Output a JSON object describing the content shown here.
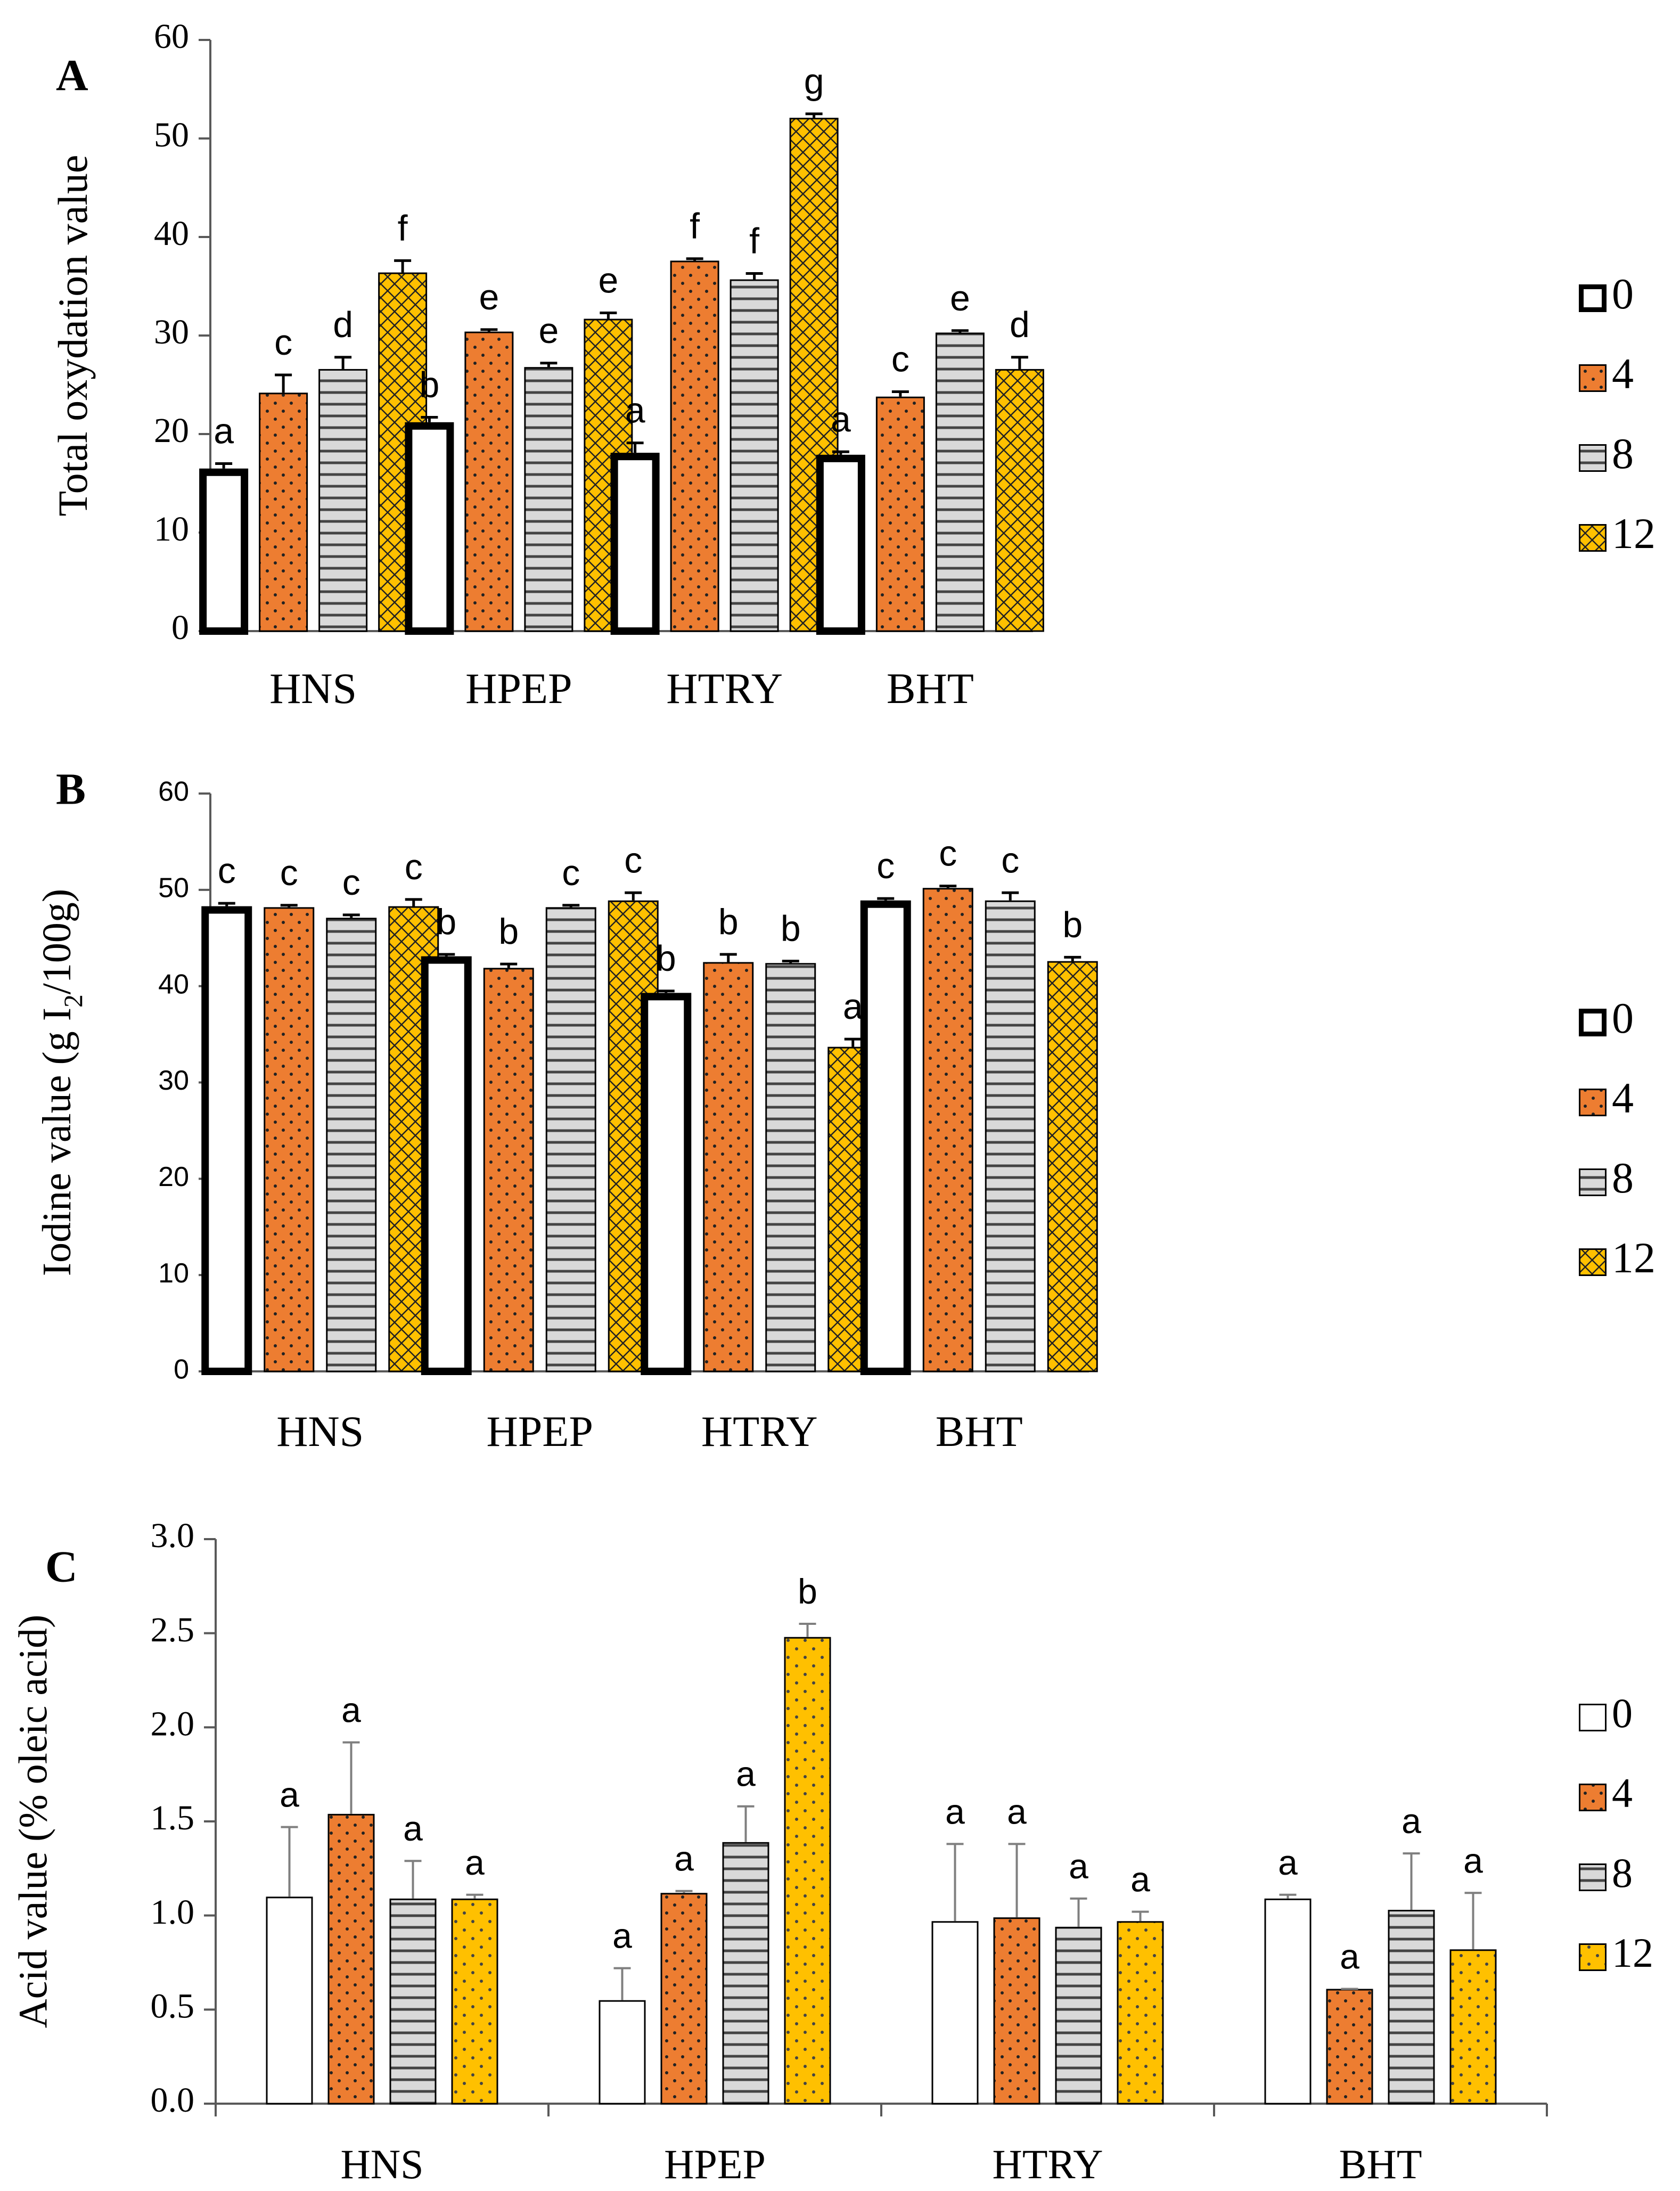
{
  "colors": {
    "w0": "#ffffff",
    "w4": "#ed7d31",
    "w8": "#d9d9d9",
    "w12": "#ffc000",
    "axis": "#595959",
    "errbar_c": "#7f7f7f",
    "text": "#000000"
  },
  "chart_data": [
    {
      "type": "bar",
      "panel_label": "A",
      "title": "",
      "xlabel": "",
      "ylabel": "Total oxydation value",
      "ylim": [
        0,
        60
      ],
      "yticks": [
        0,
        10,
        20,
        30,
        40,
        50,
        60
      ],
      "yticks_display": [
        "0",
        "10",
        "20",
        "30",
        "40",
        "50",
        "60"
      ],
      "grid": false,
      "legend_position": "right",
      "categories": [
        "HNS",
        "HPEP",
        "HTRY",
        "BHT"
      ],
      "series": [
        {
          "name": "0",
          "values": [
            16.5,
            21.2,
            18.1,
            17.9
          ],
          "errors": [
            0.5,
            0.5,
            1.0,
            0.3
          ],
          "letters": [
            "a",
            "b",
            "a",
            "a"
          ]
        },
        {
          "name": "4",
          "values": [
            24.2,
            30.4,
            37.6,
            23.8
          ],
          "errors": [
            1.8,
            0.2,
            0.2,
            0.5
          ],
          "letters": [
            "c",
            "e",
            "f",
            "c"
          ]
        },
        {
          "name": "8",
          "values": [
            26.6,
            26.8,
            35.7,
            30.3
          ],
          "errors": [
            1.2,
            0.4,
            0.6,
            0.2
          ],
          "letters": [
            "d",
            "e",
            "f",
            "e"
          ]
        },
        {
          "name": "12",
          "values": [
            36.4,
            31.7,
            52.1,
            26.6
          ],
          "errors": [
            1.2,
            0.6,
            0.4,
            1.2
          ],
          "letters": [
            "f",
            "e",
            "g",
            "d"
          ]
        }
      ]
    },
    {
      "type": "bar",
      "panel_label": "B",
      "title": "",
      "xlabel": "",
      "ylabel": "Iodine value (g I",
      "ylabel_sub": "2",
      "ylabel_tail": "/100g)",
      "ylim": [
        0,
        60
      ],
      "yticks": [
        0,
        10,
        20,
        30,
        40,
        50,
        60
      ],
      "yticks_display": [
        "0",
        "10",
        "20",
        "30",
        "40",
        "50",
        "60"
      ],
      "grid": false,
      "legend_position": "right",
      "categories": [
        "HNS",
        "HPEP",
        "HTRY",
        "BHT"
      ],
      "series": [
        {
          "name": "0",
          "values": [
            48.3,
            43.1,
            39.3,
            48.9
          ],
          "errors": [
            0.3,
            0.2,
            0.2,
            0.2
          ],
          "letters": [
            "c",
            "b",
            "b",
            "c"
          ]
        },
        {
          "name": "4",
          "values": [
            48.2,
            41.9,
            42.5,
            50.2
          ],
          "errors": [
            0.2,
            0.4,
            0.8,
            0.2
          ],
          "letters": [
            "c",
            "b",
            "b",
            "c"
          ]
        },
        {
          "name": "8",
          "values": [
            47.1,
            48.2,
            42.4,
            48.9
          ],
          "errors": [
            0.3,
            0.2,
            0.2,
            0.8
          ],
          "letters": [
            "c",
            "c",
            "b",
            "c"
          ]
        },
        {
          "name": "12",
          "values": [
            48.3,
            48.9,
            33.7,
            42.6
          ],
          "errors": [
            0.7,
            0.8,
            0.8,
            0.4
          ],
          "letters": [
            "c",
            "c",
            "a",
            "b"
          ]
        }
      ]
    },
    {
      "type": "bar",
      "panel_label": "C",
      "title": "",
      "xlabel": "",
      "ylabel": "Acid value (% oleic acid)",
      "ylim": [
        0,
        3.0
      ],
      "yticks": [
        0,
        0.5,
        1.0,
        1.5,
        2.0,
        2.5,
        3.0
      ],
      "yticks_display": [
        "0.0",
        "0.5",
        "1.0",
        "1.5",
        "2.0",
        "2.5",
        "3.0"
      ],
      "grid": false,
      "legend_position": "right",
      "categories": [
        "HNS",
        "HPEP",
        "HTRY",
        "BHT"
      ],
      "series": [
        {
          "name": "0",
          "values": [
            1.1,
            0.55,
            0.97,
            1.09
          ],
          "errors": [
            0.37,
            0.17,
            0.41,
            0.02
          ],
          "letters": [
            "a",
            "a",
            "a",
            "a"
          ]
        },
        {
          "name": "4",
          "values": [
            1.54,
            1.12,
            0.99,
            0.61
          ],
          "errors": [
            0.38,
            0.01,
            0.39,
            0.0
          ],
          "letters": [
            "a",
            "a",
            "a",
            "a"
          ]
        },
        {
          "name": "8",
          "values": [
            1.09,
            1.39,
            0.94,
            1.03
          ],
          "errors": [
            0.2,
            0.19,
            0.15,
            0.3
          ],
          "letters": [
            "a",
            "a",
            "a",
            "a"
          ]
        },
        {
          "name": "12",
          "values": [
            1.09,
            2.48,
            0.97,
            0.82
          ],
          "errors": [
            0.02,
            0.07,
            0.05,
            0.3
          ],
          "letters": [
            "a",
            "b",
            "a",
            "a"
          ]
        }
      ]
    }
  ]
}
